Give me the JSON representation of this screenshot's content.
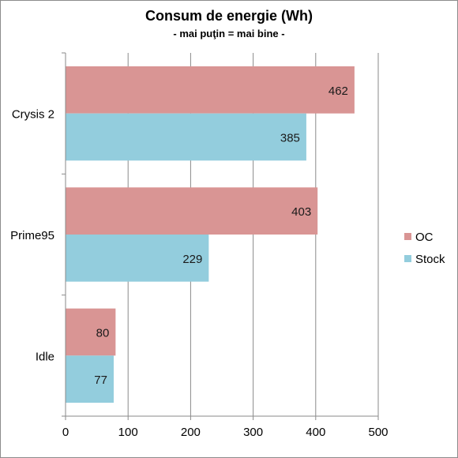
{
  "chart_data": {
    "type": "bar",
    "orientation": "horizontal",
    "title": "Consum de energie (Wh)",
    "subtitle": "- mai puţin = mai bine -",
    "categories": [
      "Crysis 2",
      "Prime95",
      "Idle"
    ],
    "series": [
      {
        "name": "OC",
        "values": [
          462,
          403,
          80
        ],
        "color": "#d99594"
      },
      {
        "name": "Stock",
        "values": [
          385,
          229,
          77
        ],
        "color": "#93cddd"
      }
    ],
    "xlim": [
      0,
      500
    ],
    "xticks": [
      0,
      100,
      200,
      300,
      400,
      500
    ],
    "grid": true,
    "legend_position": "right"
  }
}
